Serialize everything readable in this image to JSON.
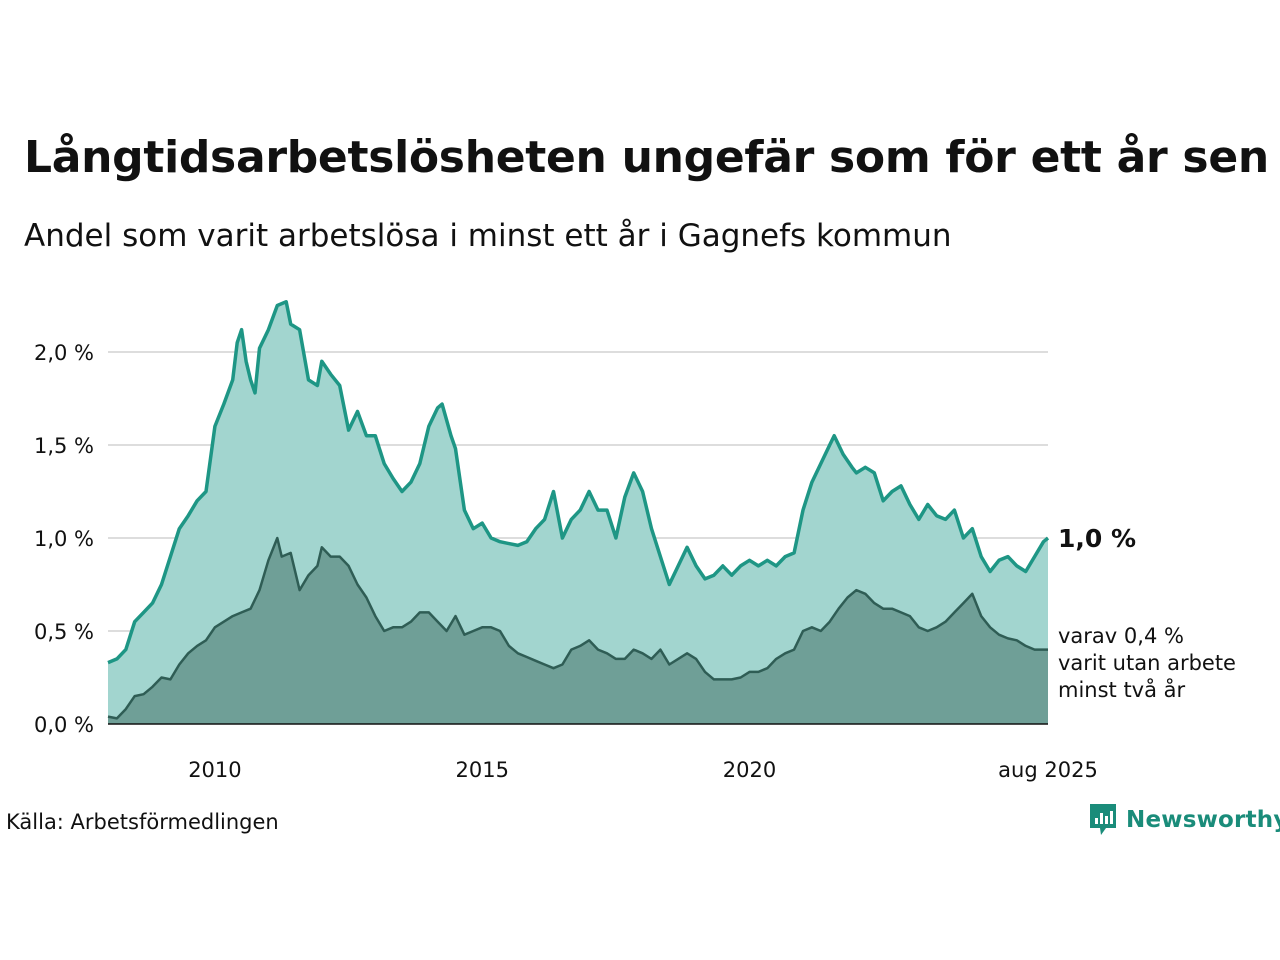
{
  "header": {
    "title": "Långtidsarbetslösheten ungefär som för ett år sen",
    "subtitle": "Andel som varit arbetslösa i minst ett år i Gagnefs kommun"
  },
  "footer": {
    "source": "Källa: Arbetsförmedlingen",
    "brand": "Newsworthy"
  },
  "colors": {
    "primary_line": "#1e9685",
    "primary_fill": "#a2d5cf",
    "secondary_line": "#2f5d55",
    "secondary_fill": "#6f9f97",
    "grid": "#dddddd",
    "brand": "#1a8c7a"
  },
  "chart_data": {
    "type": "area",
    "x_range": [
      "2008-01",
      "2025-08"
    ],
    "ylim": [
      0,
      2.3
    ],
    "y_ticks": [
      {
        "value": 0.0,
        "label": "0,0 %"
      },
      {
        "value": 0.5,
        "label": "0,5 %"
      },
      {
        "value": 1.0,
        "label": "1,0 %"
      },
      {
        "value": 1.5,
        "label": "1,5 %"
      },
      {
        "value": 2.0,
        "label": "2,0 %"
      }
    ],
    "x_ticks": [
      {
        "value": "2010-01",
        "label": "2010"
      },
      {
        "value": "2015-01",
        "label": "2015"
      },
      {
        "value": "2020-01",
        "label": "2020"
      },
      {
        "value": "2025-08",
        "label": "aug 2025"
      }
    ],
    "grid": true,
    "end_labels": {
      "primary": "1,0 %",
      "secondary": [
        "varav 0,4 %",
        "varit utan arbete",
        "minst två år"
      ]
    },
    "series": [
      {
        "key": "min_ett_ar",
        "points": [
          [
            "2008-01",
            0.33
          ],
          [
            "2008-03",
            0.35
          ],
          [
            "2008-05",
            0.4
          ],
          [
            "2008-07",
            0.55
          ],
          [
            "2008-09",
            0.6
          ],
          [
            "2008-11",
            0.65
          ],
          [
            "2009-01",
            0.75
          ],
          [
            "2009-03",
            0.9
          ],
          [
            "2009-05",
            1.05
          ],
          [
            "2009-07",
            1.12
          ],
          [
            "2009-09",
            1.2
          ],
          [
            "2009-11",
            1.25
          ],
          [
            "2010-01",
            1.6
          ],
          [
            "2010-03",
            1.72
          ],
          [
            "2010-05",
            1.85
          ],
          [
            "2010-06",
            2.05
          ],
          [
            "2010-07",
            2.12
          ],
          [
            "2010-08",
            1.95
          ],
          [
            "2010-09",
            1.85
          ],
          [
            "2010-10",
            1.78
          ],
          [
            "2010-11",
            2.02
          ],
          [
            "2011-01",
            2.12
          ],
          [
            "2011-03",
            2.25
          ],
          [
            "2011-05",
            2.27
          ],
          [
            "2011-06",
            2.15
          ],
          [
            "2011-08",
            2.12
          ],
          [
            "2011-10",
            1.85
          ],
          [
            "2011-12",
            1.82
          ],
          [
            "2012-01",
            1.95
          ],
          [
            "2012-03",
            1.88
          ],
          [
            "2012-05",
            1.82
          ],
          [
            "2012-07",
            1.58
          ],
          [
            "2012-09",
            1.68
          ],
          [
            "2012-11",
            1.55
          ],
          [
            "2013-01",
            1.55
          ],
          [
            "2013-03",
            1.4
          ],
          [
            "2013-05",
            1.32
          ],
          [
            "2013-07",
            1.25
          ],
          [
            "2013-09",
            1.3
          ],
          [
            "2013-11",
            1.4
          ],
          [
            "2014-01",
            1.6
          ],
          [
            "2014-03",
            1.7
          ],
          [
            "2014-04",
            1.72
          ],
          [
            "2014-06",
            1.55
          ],
          [
            "2014-07",
            1.48
          ],
          [
            "2014-09",
            1.15
          ],
          [
            "2014-11",
            1.05
          ],
          [
            "2015-01",
            1.08
          ],
          [
            "2015-03",
            1.0
          ],
          [
            "2015-05",
            0.98
          ],
          [
            "2015-07",
            0.97
          ],
          [
            "2015-09",
            0.96
          ],
          [
            "2015-11",
            0.98
          ],
          [
            "2016-01",
            1.05
          ],
          [
            "2016-03",
            1.1
          ],
          [
            "2016-05",
            1.25
          ],
          [
            "2016-07",
            1.0
          ],
          [
            "2016-09",
            1.1
          ],
          [
            "2016-11",
            1.15
          ],
          [
            "2017-01",
            1.25
          ],
          [
            "2017-03",
            1.15
          ],
          [
            "2017-05",
            1.15
          ],
          [
            "2017-07",
            1.0
          ],
          [
            "2017-09",
            1.22
          ],
          [
            "2017-11",
            1.35
          ],
          [
            "2018-01",
            1.25
          ],
          [
            "2018-03",
            1.05
          ],
          [
            "2018-05",
            0.9
          ],
          [
            "2018-07",
            0.75
          ],
          [
            "2018-09",
            0.85
          ],
          [
            "2018-11",
            0.95
          ],
          [
            "2019-01",
            0.85
          ],
          [
            "2019-03",
            0.78
          ],
          [
            "2019-05",
            0.8
          ],
          [
            "2019-07",
            0.85
          ],
          [
            "2019-09",
            0.8
          ],
          [
            "2019-11",
            0.85
          ],
          [
            "2020-01",
            0.88
          ],
          [
            "2020-03",
            0.85
          ],
          [
            "2020-05",
            0.88
          ],
          [
            "2020-07",
            0.85
          ],
          [
            "2020-09",
            0.9
          ],
          [
            "2020-11",
            0.92
          ],
          [
            "2021-01",
            1.15
          ],
          [
            "2021-03",
            1.3
          ],
          [
            "2021-05",
            1.4
          ],
          [
            "2021-07",
            1.5
          ],
          [
            "2021-08",
            1.55
          ],
          [
            "2021-10",
            1.45
          ],
          [
            "2021-12",
            1.38
          ],
          [
            "2022-01",
            1.35
          ],
          [
            "2022-03",
            1.38
          ],
          [
            "2022-05",
            1.35
          ],
          [
            "2022-07",
            1.2
          ],
          [
            "2022-09",
            1.25
          ],
          [
            "2022-11",
            1.28
          ],
          [
            "2023-01",
            1.18
          ],
          [
            "2023-03",
            1.1
          ],
          [
            "2023-05",
            1.18
          ],
          [
            "2023-07",
            1.12
          ],
          [
            "2023-09",
            1.1
          ],
          [
            "2023-11",
            1.15
          ],
          [
            "2024-01",
            1.0
          ],
          [
            "2024-03",
            1.05
          ],
          [
            "2024-05",
            0.9
          ],
          [
            "2024-07",
            0.82
          ],
          [
            "2024-09",
            0.88
          ],
          [
            "2024-11",
            0.9
          ],
          [
            "2025-01",
            0.85
          ],
          [
            "2025-03",
            0.82
          ],
          [
            "2025-05",
            0.9
          ],
          [
            "2025-07",
            0.98
          ],
          [
            "2025-08",
            1.0
          ]
        ]
      },
      {
        "key": "minst_tva_ar",
        "points": [
          [
            "2008-01",
            0.04
          ],
          [
            "2008-03",
            0.03
          ],
          [
            "2008-05",
            0.08
          ],
          [
            "2008-07",
            0.15
          ],
          [
            "2008-09",
            0.16
          ],
          [
            "2008-11",
            0.2
          ],
          [
            "2009-01",
            0.25
          ],
          [
            "2009-03",
            0.24
          ],
          [
            "2009-05",
            0.32
          ],
          [
            "2009-07",
            0.38
          ],
          [
            "2009-09",
            0.42
          ],
          [
            "2009-11",
            0.45
          ],
          [
            "2010-01",
            0.52
          ],
          [
            "2010-03",
            0.55
          ],
          [
            "2010-05",
            0.58
          ],
          [
            "2010-07",
            0.6
          ],
          [
            "2010-09",
            0.62
          ],
          [
            "2010-11",
            0.72
          ],
          [
            "2011-01",
            0.88
          ],
          [
            "2011-03",
            1.0
          ],
          [
            "2011-04",
            0.9
          ],
          [
            "2011-06",
            0.92
          ],
          [
            "2011-08",
            0.72
          ],
          [
            "2011-10",
            0.8
          ],
          [
            "2011-12",
            0.85
          ],
          [
            "2012-01",
            0.95
          ],
          [
            "2012-03",
            0.9
          ],
          [
            "2012-05",
            0.9
          ],
          [
            "2012-07",
            0.85
          ],
          [
            "2012-09",
            0.75
          ],
          [
            "2012-11",
            0.68
          ],
          [
            "2013-01",
            0.58
          ],
          [
            "2013-03",
            0.5
          ],
          [
            "2013-05",
            0.52
          ],
          [
            "2013-07",
            0.52
          ],
          [
            "2013-09",
            0.55
          ],
          [
            "2013-11",
            0.6
          ],
          [
            "2014-01",
            0.6
          ],
          [
            "2014-03",
            0.55
          ],
          [
            "2014-05",
            0.5
          ],
          [
            "2014-07",
            0.58
          ],
          [
            "2014-09",
            0.48
          ],
          [
            "2014-11",
            0.5
          ],
          [
            "2015-01",
            0.52
          ],
          [
            "2015-03",
            0.52
          ],
          [
            "2015-05",
            0.5
          ],
          [
            "2015-07",
            0.42
          ],
          [
            "2015-09",
            0.38
          ],
          [
            "2015-11",
            0.36
          ],
          [
            "2016-01",
            0.34
          ],
          [
            "2016-03",
            0.32
          ],
          [
            "2016-05",
            0.3
          ],
          [
            "2016-07",
            0.32
          ],
          [
            "2016-09",
            0.4
          ],
          [
            "2016-11",
            0.42
          ],
          [
            "2017-01",
            0.45
          ],
          [
            "2017-03",
            0.4
          ],
          [
            "2017-05",
            0.38
          ],
          [
            "2017-07",
            0.35
          ],
          [
            "2017-09",
            0.35
          ],
          [
            "2017-11",
            0.4
          ],
          [
            "2018-01",
            0.38
          ],
          [
            "2018-03",
            0.35
          ],
          [
            "2018-05",
            0.4
          ],
          [
            "2018-07",
            0.32
          ],
          [
            "2018-09",
            0.35
          ],
          [
            "2018-11",
            0.38
          ],
          [
            "2019-01",
            0.35
          ],
          [
            "2019-03",
            0.28
          ],
          [
            "2019-05",
            0.24
          ],
          [
            "2019-07",
            0.24
          ],
          [
            "2019-09",
            0.24
          ],
          [
            "2019-11",
            0.25
          ],
          [
            "2020-01",
            0.28
          ],
          [
            "2020-03",
            0.28
          ],
          [
            "2020-05",
            0.3
          ],
          [
            "2020-07",
            0.35
          ],
          [
            "2020-09",
            0.38
          ],
          [
            "2020-11",
            0.4
          ],
          [
            "2021-01",
            0.5
          ],
          [
            "2021-03",
            0.52
          ],
          [
            "2021-05",
            0.5
          ],
          [
            "2021-07",
            0.55
          ],
          [
            "2021-09",
            0.62
          ],
          [
            "2021-11",
            0.68
          ],
          [
            "2022-01",
            0.72
          ],
          [
            "2022-03",
            0.7
          ],
          [
            "2022-05",
            0.65
          ],
          [
            "2022-07",
            0.62
          ],
          [
            "2022-09",
            0.62
          ],
          [
            "2022-11",
            0.6
          ],
          [
            "2023-01",
            0.58
          ],
          [
            "2023-03",
            0.52
          ],
          [
            "2023-05",
            0.5
          ],
          [
            "2023-07",
            0.52
          ],
          [
            "2023-09",
            0.55
          ],
          [
            "2023-11",
            0.6
          ],
          [
            "2024-01",
            0.65
          ],
          [
            "2024-03",
            0.7
          ],
          [
            "2024-05",
            0.58
          ],
          [
            "2024-07",
            0.52
          ],
          [
            "2024-09",
            0.48
          ],
          [
            "2024-11",
            0.46
          ],
          [
            "2025-01",
            0.45
          ],
          [
            "2025-03",
            0.42
          ],
          [
            "2025-05",
            0.4
          ],
          [
            "2025-07",
            0.4
          ],
          [
            "2025-08",
            0.4
          ]
        ]
      }
    ]
  }
}
